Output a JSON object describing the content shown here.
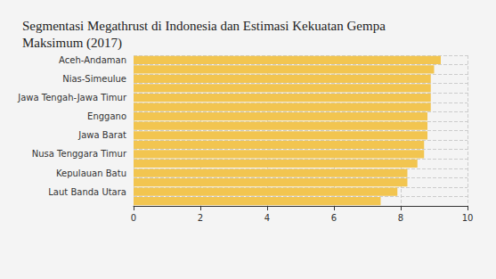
{
  "chart_data": {
    "type": "bar",
    "title": "Segmentasi Megathrust di Indonesia dan Estimasi Kekuatan Gempa Maksimum (2017)",
    "orientation": "horizontal",
    "categories": [
      "Aceh-Andaman",
      null,
      "Nias-Simeulue",
      null,
      "Jawa Tengah-Jawa Timur",
      null,
      "Enggano",
      null,
      "Jawa Barat",
      null,
      "Nusa Tenggara Timur",
      null,
      "Kepulauan Batu",
      null,
      "Laut Banda Utara",
      null
    ],
    "values": [
      9.2,
      9.0,
      8.9,
      8.9,
      8.9,
      8.9,
      8.8,
      8.8,
      8.8,
      8.7,
      8.7,
      8.5,
      8.2,
      8.2,
      7.9,
      7.4
    ],
    "color": "#f2c550",
    "xlim": [
      0,
      10
    ],
    "xticks": [
      0,
      2,
      4,
      6,
      8,
      10
    ],
    "grid": true
  }
}
